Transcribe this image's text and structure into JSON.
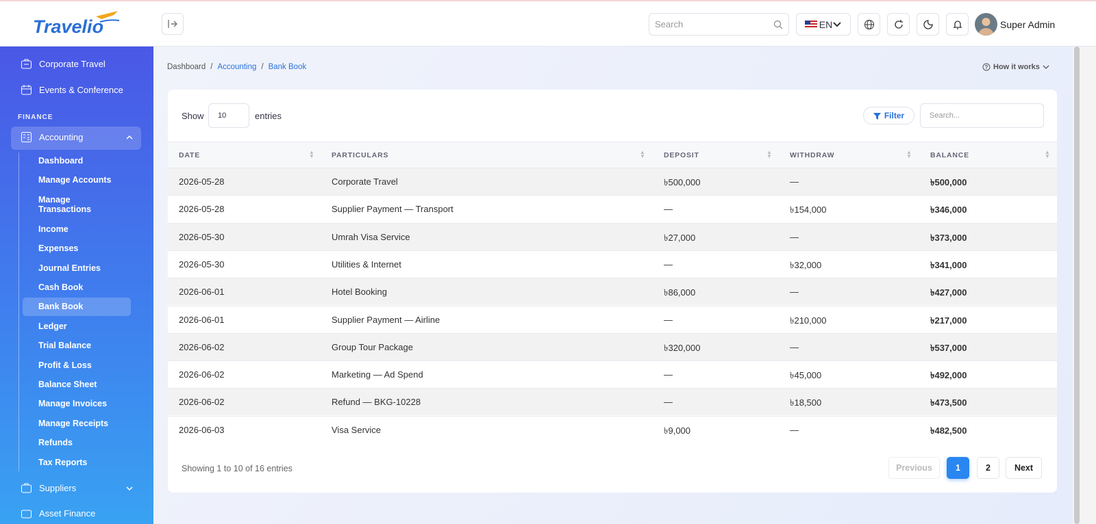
{
  "header": {
    "brand": "Travelio",
    "search_placeholder": "Search",
    "language": "EN",
    "user": "Super Admin"
  },
  "sidebar": {
    "top_items": [
      "Corporate Travel",
      "Events & Conference"
    ],
    "section": "FINANCE",
    "group": "Accounting",
    "submenu": [
      "Dashboard",
      "Manage Accounts",
      "Manage Transactions",
      "Income",
      "Expenses",
      "Journal Entries",
      "Cash Book",
      "Bank Book",
      "Ledger",
      "Trial Balance",
      "Profit & Loss",
      "Balance Sheet",
      "Manage Invoices",
      "Manage Receipts",
      "Refunds",
      "Tax Reports"
    ],
    "bottom_items": [
      "Suppliers",
      "Asset Finance"
    ]
  },
  "breadcrumb": [
    "Dashboard",
    "Accounting",
    "Bank Book"
  ],
  "help": "How it works",
  "table": {
    "show_label": "Show",
    "page_size": "10",
    "entries_label": "entries",
    "filter": "Filter",
    "search_placeholder": "Search...",
    "columns": [
      "DATE",
      "PARTICULARS",
      "DEPOSIT",
      "WITHDRAW",
      "BALANCE"
    ],
    "rows": [
      [
        "2026-05-28",
        "Corporate Travel",
        "৳500,000",
        "—",
        "৳500,000"
      ],
      [
        "2026-05-28",
        "Supplier Payment — Transport",
        "—",
        "৳154,000",
        "৳346,000"
      ],
      [
        "2026-05-30",
        "Umrah Visa Service",
        "৳27,000",
        "—",
        "৳373,000"
      ],
      [
        "2026-05-30",
        "Utilities & Internet",
        "—",
        "৳32,000",
        "৳341,000"
      ],
      [
        "2026-06-01",
        "Hotel Booking",
        "৳86,000",
        "—",
        "৳427,000"
      ],
      [
        "2026-06-01",
        "Supplier Payment — Airline",
        "—",
        "৳210,000",
        "৳217,000"
      ],
      [
        "2026-06-02",
        "Group Tour Package",
        "৳320,000",
        "—",
        "৳537,000"
      ],
      [
        "2026-06-02",
        "Marketing — Ad Spend",
        "—",
        "৳45,000",
        "৳492,000"
      ],
      [
        "2026-06-02",
        "Refund — BKG-10228",
        "—",
        "৳18,500",
        "৳473,500"
      ],
      [
        "2026-06-03",
        "Visa Service",
        "৳9,000",
        "—",
        "৳482,500"
      ]
    ],
    "summary": "Showing 1 to 10 of 16 entries",
    "pagination": [
      "Previous",
      "1",
      "2",
      "Next"
    ]
  }
}
